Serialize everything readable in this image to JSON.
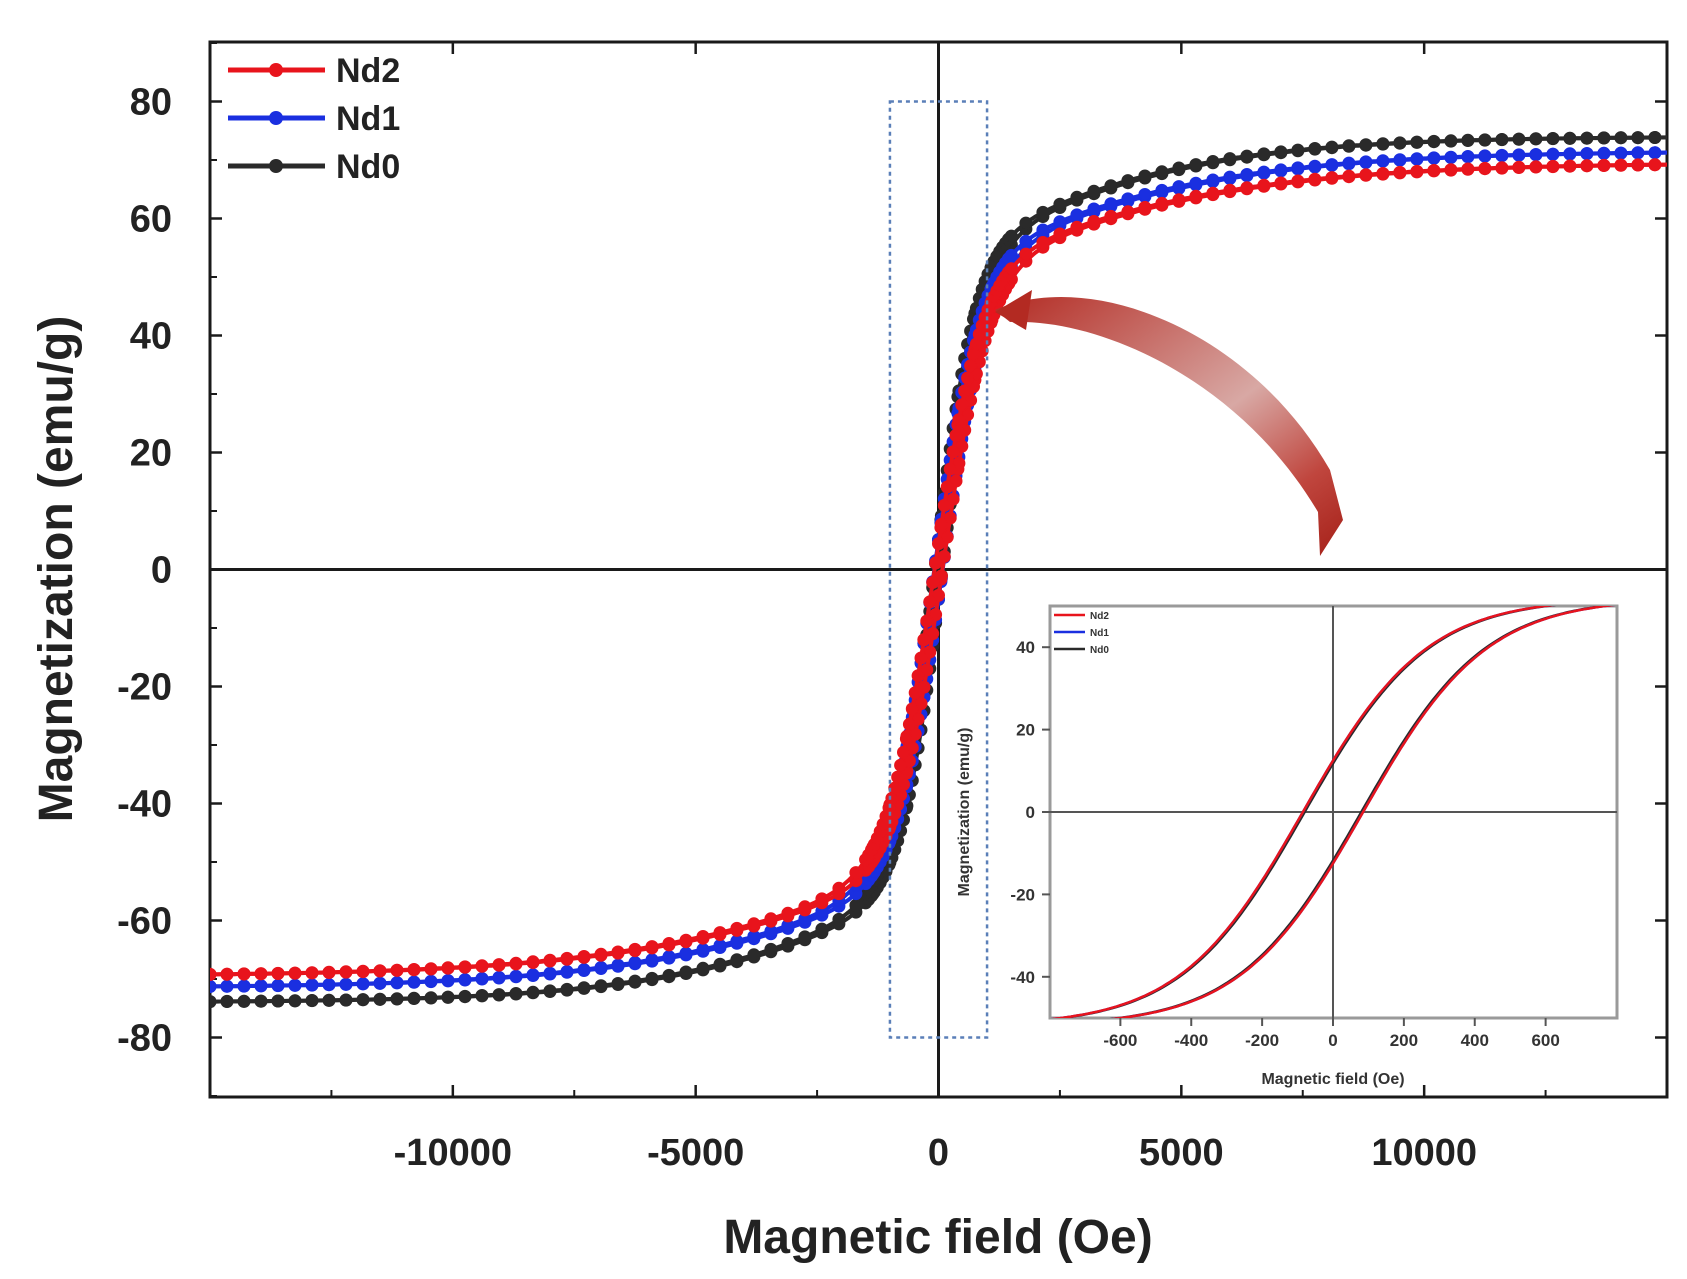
{
  "chart_data": [
    {
      "type": "line",
      "role": "main",
      "title": "",
      "xlabel": "Magnetic field (Oe)",
      "ylabel": "Magnetization (emu/g)",
      "xlim": [
        -15000,
        15000
      ],
      "ylim": [
        -90,
        90
      ],
      "xticks": [
        -10000,
        -5000,
        0,
        5000,
        10000
      ],
      "yticks": [
        -80,
        -60,
        -40,
        -20,
        0,
        20,
        40,
        60,
        80
      ],
      "legend_position": "top-left",
      "zero_lines": true,
      "series": [
        {
          "name": "Nd2",
          "color": "#e8141c",
          "ms": 69.5,
          "hc": 80,
          "h0": 1100,
          "mr": 10
        },
        {
          "name": "Nd1",
          "color": "#1a2fe0",
          "ms": 71.5,
          "hc": 85,
          "h0": 1050,
          "mr": 10
        },
        {
          "name": "Nd0",
          "color": "#2a2a2a",
          "ms": 74.0,
          "hc": 75,
          "h0": 950,
          "mr": 10
        }
      ]
    },
    {
      "type": "line",
      "role": "inset",
      "title": "",
      "xlabel": "Magnetic field (Oe)",
      "ylabel": "Magnetization (emu/g)",
      "xlim": [
        -800,
        800
      ],
      "ylim": [
        -50,
        50
      ],
      "xticks": [
        -600,
        -400,
        -200,
        0,
        200,
        400,
        600
      ],
      "yticks": [
        -40,
        -20,
        0,
        20,
        40
      ],
      "legend_position": "top-left",
      "zoom_window_x": [
        -1000,
        1000
      ],
      "zoom_window_y": [
        -80,
        80
      ],
      "series": [
        {
          "name": "Nd2",
          "color": "#e8141c"
        },
        {
          "name": "Nd1",
          "color": "#1a2fe0"
        },
        {
          "name": "Nd0",
          "color": "#2a2a2a"
        }
      ]
    }
  ],
  "colors": {
    "axis": "#1a1a1a",
    "zoom_box": "#5a7fb8",
    "arrow": "#b32a22",
    "inset_frame": "#9a9a9a"
  }
}
